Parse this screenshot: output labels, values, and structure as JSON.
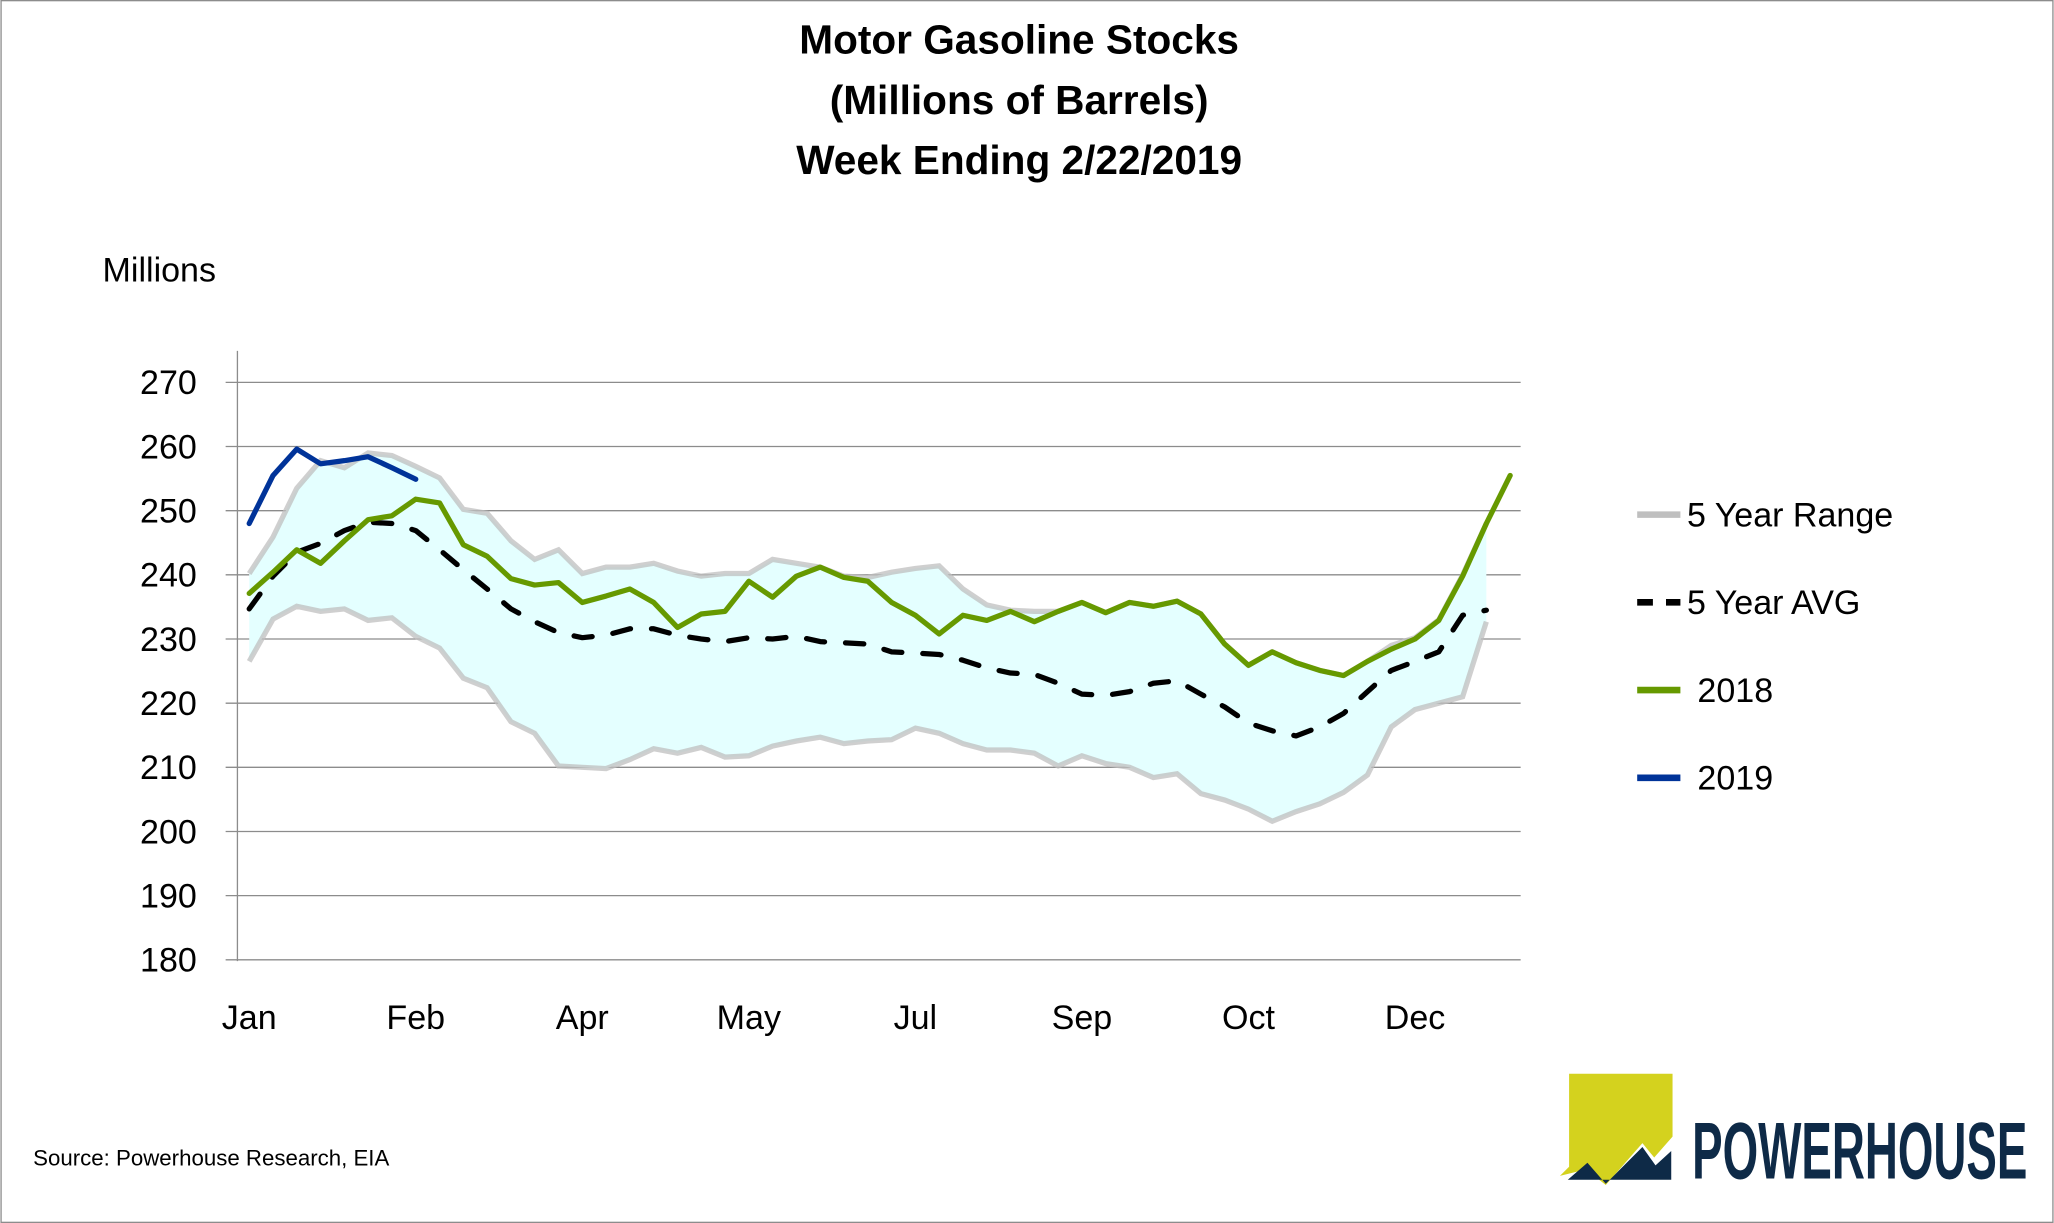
{
  "chart_data": {
    "type": "line",
    "title": [
      "Motor Gasoline Stocks",
      "(Millions of Barrels)",
      "Week Ending 2/22/2019"
    ],
    "ylabel": "Millions",
    "xlabel": "",
    "ylim": [
      180,
      270
    ],
    "y_ticks": [
      "270",
      "260",
      "250",
      "240",
      "230",
      "220",
      "210",
      "200",
      "190",
      "180"
    ],
    "y_tick_values": [
      270,
      260,
      250,
      240,
      230,
      220,
      210,
      200,
      190,
      180
    ],
    "x_ticks": [
      "Jan",
      "Feb",
      "Apr",
      "May",
      "Jul",
      "Sep",
      "Oct",
      "Dec"
    ],
    "x_tick_weeks": [
      0,
      7,
      14,
      21,
      28,
      35,
      42,
      49
    ],
    "x_range_weeks": [
      0,
      53
    ],
    "grid": "horizontal",
    "legend_position": "right",
    "series": [
      {
        "name": "5 Year Range",
        "type": "band",
        "color": "#bfbfbf",
        "fill": "#e4ffff",
        "upper": [
          240.2,
          245.9,
          253.5,
          257.8,
          256.7,
          259.0,
          258.6,
          256.9,
          255.1,
          250.2,
          249.6,
          245.3,
          242.4,
          243.9,
          240.2,
          241.2,
          241.2,
          241.8,
          240.6,
          239.8,
          240.2,
          240.2,
          242.4,
          241.8,
          241.2,
          239.8,
          239.6,
          240.4,
          241.0,
          241.4,
          237.8,
          235.3,
          234.5,
          234.3,
          234.3,
          235.7,
          234.1,
          235.7,
          235.1,
          235.9,
          233.9,
          229.2,
          225.9,
          228.0,
          226.3,
          225.1,
          224.3,
          226.5,
          229.0,
          230.2,
          233.0,
          240.0,
          248.0
        ],
        "lower": [
          226.5,
          233.1,
          235.1,
          234.3,
          234.7,
          232.9,
          233.3,
          230.4,
          228.6,
          223.9,
          222.4,
          217.1,
          215.3,
          210.2,
          210.0,
          209.8,
          211.2,
          212.9,
          212.2,
          213.1,
          211.6,
          211.8,
          213.3,
          214.1,
          214.7,
          213.7,
          214.1,
          214.3,
          216.1,
          215.3,
          213.7,
          212.7,
          212.7,
          212.2,
          210.2,
          211.8,
          210.6,
          210.0,
          208.4,
          209.0,
          205.9,
          204.9,
          203.5,
          201.6,
          203.1,
          204.3,
          206.1,
          208.8,
          216.3,
          219.0,
          220.0,
          221.0,
          232.7
        ]
      },
      {
        "name": "5 Year AVG",
        "type": "dashed",
        "color": "#000000",
        "values": [
          234.7,
          239.8,
          243.5,
          244.9,
          246.9,
          248.2,
          248.0,
          246.9,
          243.9,
          240.8,
          237.8,
          234.7,
          232.7,
          231.0,
          230.2,
          230.6,
          231.6,
          231.6,
          230.6,
          230.0,
          229.6,
          230.2,
          230.0,
          230.4,
          229.6,
          229.4,
          229.2,
          228.0,
          227.8,
          227.6,
          226.7,
          225.5,
          224.7,
          224.5,
          223.1,
          221.4,
          221.2,
          221.8,
          223.1,
          223.5,
          221.4,
          219.4,
          216.9,
          215.7,
          214.9,
          216.3,
          218.4,
          221.8,
          225.1,
          226.5,
          228.0,
          233.7,
          234.5
        ]
      },
      {
        "name": "2018",
        "type": "solid",
        "color": "#669900",
        "values": [
          237.1,
          240.4,
          243.9,
          241.8,
          245.3,
          248.6,
          249.2,
          251.8,
          251.2,
          244.7,
          242.9,
          239.4,
          238.4,
          238.8,
          235.7,
          236.7,
          237.8,
          235.7,
          231.8,
          233.9,
          234.3,
          239.0,
          236.5,
          239.8,
          241.2,
          239.6,
          239.0,
          235.7,
          233.7,
          230.8,
          233.7,
          232.9,
          234.3,
          232.7,
          234.3,
          235.7,
          234.1,
          235.7,
          235.1,
          235.9,
          233.9,
          229.2,
          225.9,
          228.0,
          226.3,
          225.1,
          224.3,
          226.5,
          228.4,
          230.0,
          232.9,
          239.8,
          248.0,
          255.5
        ]
      },
      {
        "name": "2019",
        "type": "solid",
        "color": "#003399",
        "values": [
          248.0,
          255.5,
          259.6,
          257.3,
          257.8,
          258.4,
          256.7,
          254.9
        ]
      }
    ]
  },
  "source": "Source: Powerhouse Research, EIA",
  "logo": {
    "text": "POWERHOUSE"
  }
}
